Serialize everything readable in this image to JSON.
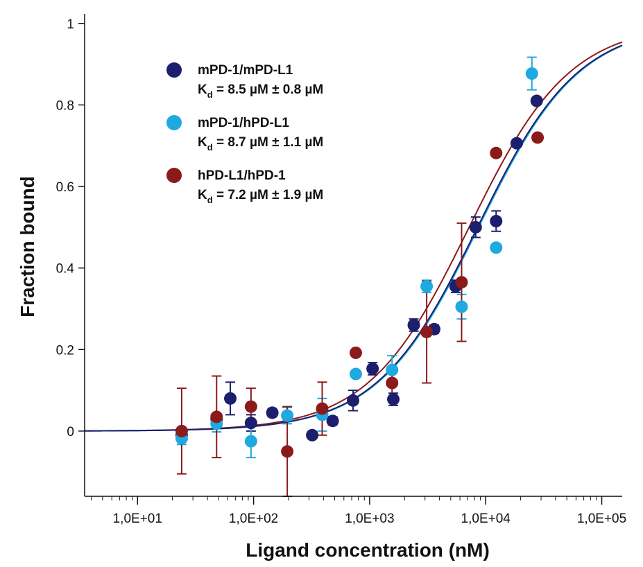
{
  "chart_data": {
    "type": "scatter",
    "xlabel": "Ligand concentration (nM)",
    "ylabel": "Fraction bound",
    "xscale": "log",
    "xlim": [
      3.5,
      150000
    ],
    "ylim": [
      -0.16,
      1.02
    ],
    "x_ticks": [
      {
        "value": 10,
        "label": "1,0E+01"
      },
      {
        "value": 100,
        "label": "1,0E+02"
      },
      {
        "value": 1000,
        "label": "1,0E+03"
      },
      {
        "value": 10000,
        "label": "1,0E+04"
      },
      {
        "value": 100000,
        "label": "1,0E+05"
      }
    ],
    "y_ticks": [
      {
        "value": 0,
        "label": "0"
      },
      {
        "value": 0.2,
        "label": "0.2"
      },
      {
        "value": 0.4,
        "label": "0.4"
      },
      {
        "value": 0.6,
        "label": "0.6"
      },
      {
        "value": 0.8,
        "label": "0.8"
      },
      {
        "value": 1,
        "label": "1"
      }
    ],
    "grid": false,
    "legend_position": "top-left",
    "series": [
      {
        "name": "mPD-1/mPD-L1",
        "kd_prefix": "K",
        "kd_sub": "d",
        "kd_suffix": " = 8.5 µM ± 0.8 µM",
        "kd_nM": 8500,
        "color": "#1b1f6e",
        "points": [
          {
            "x": 24,
            "y": -0.01,
            "err": 0.0
          },
          {
            "x": 48,
            "y": 0.03,
            "err": 0.0
          },
          {
            "x": 63,
            "y": 0.08,
            "err": 0.04
          },
          {
            "x": 95,
            "y": 0.02,
            "err": 0.02
          },
          {
            "x": 145,
            "y": 0.045,
            "err": 0.01
          },
          {
            "x": 320,
            "y": -0.01,
            "err": 0.0
          },
          {
            "x": 480,
            "y": 0.025,
            "err": 0.01
          },
          {
            "x": 720,
            "y": 0.075,
            "err": 0.025
          },
          {
            "x": 1060,
            "y": 0.153,
            "err": 0.015
          },
          {
            "x": 1600,
            "y": 0.078,
            "err": 0.015
          },
          {
            "x": 2400,
            "y": 0.26,
            "err": 0.015
          },
          {
            "x": 3600,
            "y": 0.25,
            "err": 0.01
          },
          {
            "x": 5500,
            "y": 0.355,
            "err": 0.015
          },
          {
            "x": 8200,
            "y": 0.5,
            "err": 0.025
          },
          {
            "x": 12300,
            "y": 0.515,
            "err": 0.025
          },
          {
            "x": 18500,
            "y": 0.706,
            "err": 0.0
          },
          {
            "x": 27500,
            "y": 0.81,
            "err": 0.0
          }
        ]
      },
      {
        "name": "mPD-1/hPD-L1",
        "kd_prefix": "K",
        "kd_sub": "d",
        "kd_suffix": " = 8.7 µM ± 1.1 µM",
        "kd_nM": 8700,
        "color": "#1fa9e1",
        "points": [
          {
            "x": 24,
            "y": -0.018,
            "err": 0.015
          },
          {
            "x": 48,
            "y": 0.018,
            "err": 0.02
          },
          {
            "x": 95,
            "y": -0.025,
            "err": 0.04
          },
          {
            "x": 195,
            "y": 0.038,
            "err": 0.02
          },
          {
            "x": 390,
            "y": 0.04,
            "err": 0.04
          },
          {
            "x": 760,
            "y": 0.14,
            "err": 0.0
          },
          {
            "x": 1560,
            "y": 0.15,
            "err": 0.035
          },
          {
            "x": 3100,
            "y": 0.355,
            "err": 0.015
          },
          {
            "x": 6200,
            "y": 0.305,
            "err": 0.03
          },
          {
            "x": 12300,
            "y": 0.45,
            "err": 0.0
          },
          {
            "x": 25000,
            "y": 0.877,
            "err": 0.04
          }
        ]
      },
      {
        "name": "hPD-L1/hPD-1",
        "kd_prefix": "K",
        "kd_sub": "d",
        "kd_suffix": " = 7.2 µM ± 1.9 µM",
        "kd_nM": 7200,
        "color": "#8b1a1a",
        "points": [
          {
            "x": 24,
            "y": 0.0,
            "err": 0.105
          },
          {
            "x": 48,
            "y": 0.035,
            "err": 0.1
          },
          {
            "x": 95,
            "y": 0.06,
            "err": 0.045
          },
          {
            "x": 195,
            "y": -0.05,
            "err": 0.11
          },
          {
            "x": 390,
            "y": 0.055,
            "err": 0.065
          },
          {
            "x": 760,
            "y": 0.192,
            "err": 0.0
          },
          {
            "x": 1560,
            "y": 0.118,
            "err": 0.04
          },
          {
            "x": 3100,
            "y": 0.243,
            "err": 0.125
          },
          {
            "x": 6200,
            "y": 0.365,
            "err": 0.145
          },
          {
            "x": 12300,
            "y": 0.682,
            "err": 0.0
          },
          {
            "x": 28000,
            "y": 0.72,
            "err": 0.0
          }
        ]
      }
    ]
  }
}
